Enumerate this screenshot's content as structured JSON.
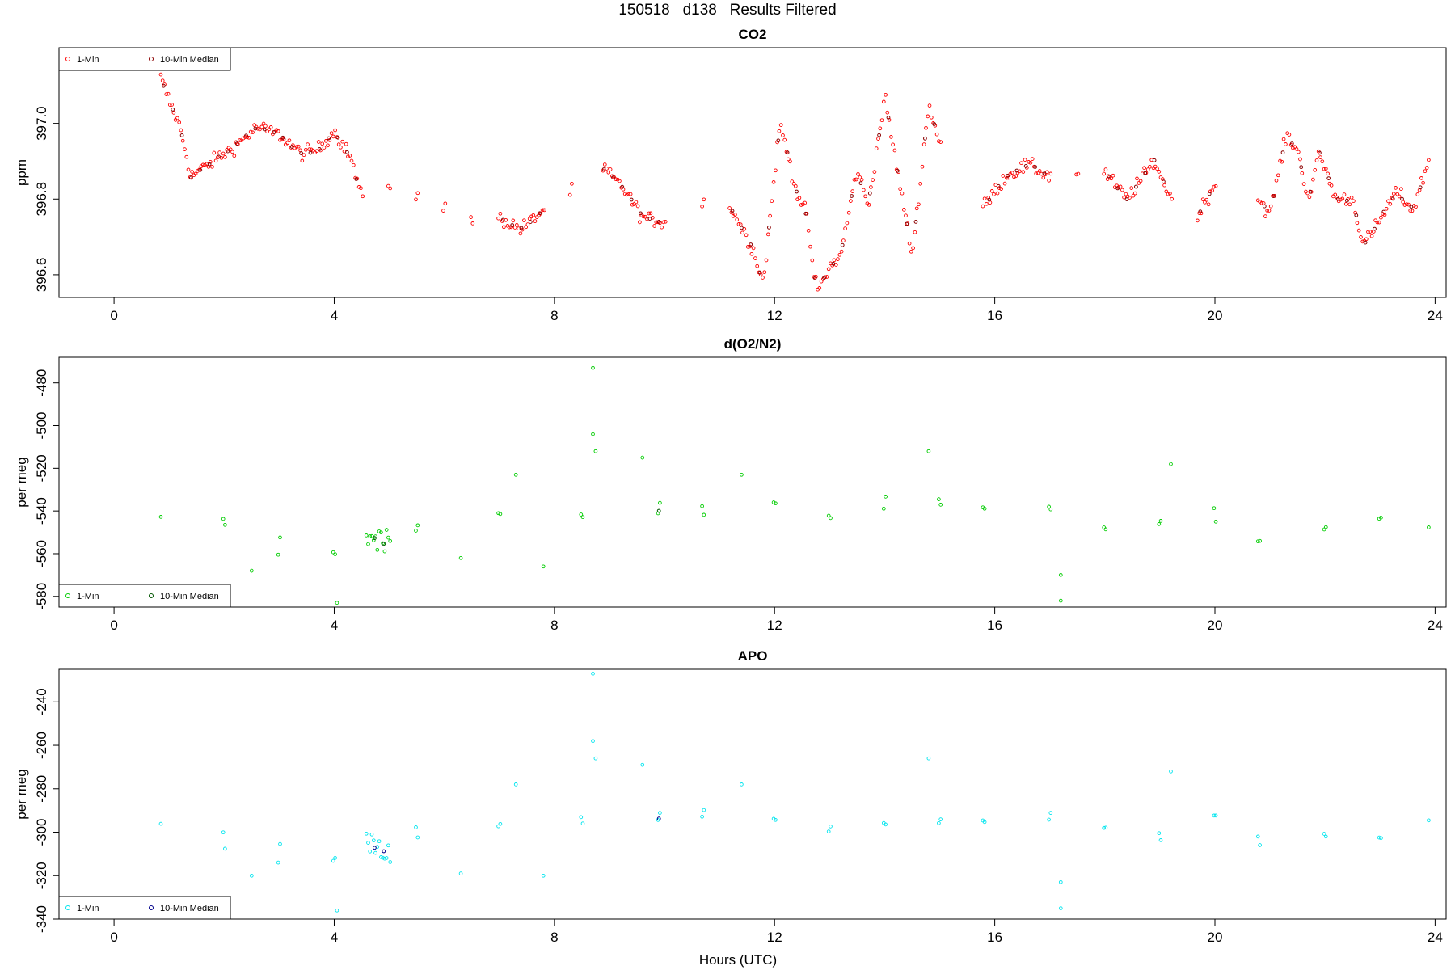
{
  "figure_title": "150518   d138   Results Filtered",
  "x_axis_label": "Hours (UTC)",
  "colors": {
    "co2": "#ff0000",
    "co2_median": "#8b0000",
    "o2": "#00cc00",
    "o2_median": "#005500",
    "apo": "#00e5ee",
    "apo_median": "#00008b"
  },
  "chart_data": [
    {
      "type": "scatter",
      "title": "CO2",
      "ylabel": "ppm",
      "xlabel": "",
      "xlim": [
        -1,
        24.2
      ],
      "ylim": [
        396.54,
        397.2
      ],
      "x_ticks": [
        0,
        4,
        8,
        12,
        16,
        20,
        24
      ],
      "y_ticks": [
        396.6,
        396.8,
        397.0
      ],
      "y_tick_labels": [
        "396.6",
        "396.8",
        "397.0"
      ],
      "legend_position": "top-left",
      "series": [
        {
          "name": "1-Min",
          "color": "#ff0000",
          "marker": "circle-open",
          "anchors": [
            [
              0.85,
              397.12
            ],
            [
              1.0,
              397.06
            ],
            [
              1.2,
              396.99
            ],
            [
              1.4,
              396.86
            ],
            [
              1.8,
              396.9
            ],
            [
              2.2,
              396.94
            ],
            [
              2.6,
              396.99
            ],
            [
              3.0,
              396.97
            ],
            [
              3.4,
              396.92
            ],
            [
              3.7,
              396.93
            ],
            [
              4.0,
              396.98
            ],
            [
              4.3,
              396.91
            ],
            [
              4.5,
              396.8
            ],
            [
              5.0,
              396.84
            ],
            [
              5.5,
              396.81
            ],
            [
              6.0,
              396.78
            ],
            [
              6.5,
              396.74
            ],
            [
              7.0,
              396.75
            ],
            [
              7.4,
              396.72
            ],
            [
              7.8,
              396.77
            ],
            [
              8.3,
              396.82
            ],
            [
              8.9,
              396.88
            ],
            [
              9.3,
              396.82
            ],
            [
              9.6,
              396.75
            ],
            [
              10.0,
              396.74
            ],
            [
              10.7,
              396.79
            ],
            [
              11.2,
              396.78
            ],
            [
              11.6,
              396.67
            ],
            [
              11.8,
              396.58
            ],
            [
              12.0,
              396.87
            ],
            [
              12.1,
              397.0
            ],
            [
              12.4,
              396.82
            ],
            [
              12.6,
              396.75
            ],
            [
              12.7,
              396.6
            ],
            [
              12.8,
              396.56
            ],
            [
              13.0,
              396.62
            ],
            [
              13.2,
              396.65
            ],
            [
              13.5,
              396.88
            ],
            [
              13.7,
              396.78
            ],
            [
              14.0,
              397.07
            ],
            [
              14.3,
              396.82
            ],
            [
              14.5,
              396.65
            ],
            [
              14.8,
              397.05
            ],
            [
              15.0,
              396.95
            ],
            [
              15.8,
              396.78
            ],
            [
              16.2,
              396.86
            ],
            [
              16.6,
              396.89
            ],
            [
              17.0,
              396.86
            ],
            [
              17.5,
              396.87
            ],
            [
              18.0,
              396.87
            ],
            [
              18.4,
              396.8
            ],
            [
              18.6,
              396.84
            ],
            [
              18.9,
              396.9
            ],
            [
              19.2,
              396.8
            ],
            [
              19.7,
              396.76
            ],
            [
              20.0,
              396.84
            ],
            [
              20.8,
              396.8
            ],
            [
              21.0,
              396.76
            ],
            [
              21.3,
              396.97
            ],
            [
              21.5,
              396.93
            ],
            [
              21.7,
              396.8
            ],
            [
              21.9,
              396.92
            ],
            [
              22.2,
              396.8
            ],
            [
              22.5,
              396.8
            ],
            [
              22.7,
              396.68
            ],
            [
              22.9,
              396.72
            ],
            [
              23.3,
              396.82
            ],
            [
              23.6,
              396.77
            ],
            [
              23.9,
              396.91
            ]
          ],
          "noise": 0.018,
          "step_minutes": 2
        },
        {
          "name": "10-Min Median",
          "color": "#8b0000",
          "marker": "circle-open",
          "step_minutes": 10
        }
      ]
    },
    {
      "type": "scatter",
      "title": "d(O2/N2)",
      "ylabel": "per meg",
      "xlabel": "",
      "xlim": [
        -1,
        24.2
      ],
      "ylim": [
        -585,
        -468
      ],
      "x_ticks": [
        0,
        4,
        8,
        12,
        16,
        20,
        24
      ],
      "y_ticks": [
        -580,
        -560,
        -540,
        -520,
        -500,
        -480
      ],
      "y_tick_labels": [
        "-580",
        "-560",
        "-540",
        "-520",
        "-500",
        "-480"
      ],
      "legend_position": "bottom-left",
      "series": [
        {
          "name": "1-Min",
          "color": "#00cc00",
          "marker": "circle-open",
          "anchors": [
            [
              0.85,
              -548
            ],
            [
              2.0,
              -550
            ],
            [
              3.0,
              -556
            ],
            [
              4.0,
              -560
            ],
            [
              4.6,
              -552
            ],
            [
              5.0,
              -556
            ],
            [
              5.5,
              -547
            ],
            [
              7.0,
              -541
            ],
            [
              8.5,
              -543
            ],
            [
              9.9,
              -540
            ],
            [
              10.7,
              -539
            ],
            [
              12.0,
              -541
            ],
            [
              13.0,
              -541
            ],
            [
              14.0,
              -542
            ],
            [
              15.0,
              -540
            ],
            [
              15.8,
              -540
            ],
            [
              17.0,
              -541
            ],
            [
              18.0,
              -546
            ],
            [
              19.0,
              -547
            ],
            [
              20.0,
              -542
            ],
            [
              20.8,
              -549
            ],
            [
              22.0,
              -548
            ],
            [
              23.0,
              -548
            ],
            [
              23.9,
              -546
            ]
          ],
          "noise": 7,
          "step_minutes": 2,
          "outliers": [
            [
              8.7,
              -473
            ],
            [
              8.7,
              -504
            ],
            [
              8.75,
              -512
            ],
            [
              9.6,
              -515
            ],
            [
              14.8,
              -512
            ],
            [
              19.2,
              -518
            ],
            [
              17.2,
              -582
            ],
            [
              17.2,
              -570
            ],
            [
              4.05,
              -583
            ],
            [
              7.8,
              -566
            ],
            [
              2.5,
              -568
            ],
            [
              6.3,
              -562
            ],
            [
              11.4,
              -523
            ],
            [
              7.3,
              -523
            ]
          ]
        },
        {
          "name": "10-Min Median",
          "color": "#005500",
          "marker": "circle-open",
          "step_minutes": 10
        }
      ]
    },
    {
      "type": "scatter",
      "title": "APO",
      "ylabel": "per meg",
      "xlabel": "Hours (UTC)",
      "xlim": [
        -1,
        24.2
      ],
      "ylim": [
        -340,
        -225
      ],
      "x_ticks": [
        0,
        4,
        8,
        12,
        16,
        20,
        24
      ],
      "y_ticks": [
        -340,
        -320,
        -300,
        -280,
        -260,
        -240
      ],
      "y_tick_labels": [
        "-340",
        "-320",
        "-300",
        "-280",
        "-260",
        "-240"
      ],
      "legend_position": "bottom-left",
      "series": [
        {
          "name": "1-Min",
          "color": "#00e5ee",
          "marker": "circle-open",
          "anchors": [
            [
              0.85,
              -301
            ],
            [
              2.0,
              -303
            ],
            [
              3.0,
              -310
            ],
            [
              4.0,
              -313
            ],
            [
              4.6,
              -306
            ],
            [
              5.0,
              -311
            ],
            [
              5.5,
              -302
            ],
            [
              7.0,
              -298
            ],
            [
              8.5,
              -296
            ],
            [
              9.9,
              -294
            ],
            [
              10.7,
              -293
            ],
            [
              12.0,
              -294
            ],
            [
              13.0,
              -297
            ],
            [
              14.0,
              -295
            ],
            [
              15.0,
              -293
            ],
            [
              15.8,
              -295
            ],
            [
              17.0,
              -295
            ],
            [
              18.0,
              -300
            ],
            [
              19.0,
              -301
            ],
            [
              20.0,
              -297
            ],
            [
              20.8,
              -303
            ],
            [
              22.0,
              -303
            ],
            [
              23.0,
              -302
            ],
            [
              23.9,
              -300
            ]
          ],
          "noise": 6,
          "step_minutes": 2,
          "outliers": [
            [
              8.7,
              -227
            ],
            [
              8.7,
              -258
            ],
            [
              8.75,
              -266
            ],
            [
              9.6,
              -269
            ],
            [
              14.8,
              -266
            ],
            [
              19.2,
              -272
            ],
            [
              17.2,
              -335
            ],
            [
              17.2,
              -323
            ],
            [
              4.05,
              -336
            ],
            [
              7.8,
              -320
            ],
            [
              2.5,
              -320
            ],
            [
              6.3,
              -319
            ],
            [
              11.4,
              -278
            ],
            [
              7.3,
              -278
            ]
          ]
        },
        {
          "name": "10-Min Median",
          "color": "#00008b",
          "marker": "circle-open",
          "step_minutes": 10
        }
      ]
    }
  ]
}
